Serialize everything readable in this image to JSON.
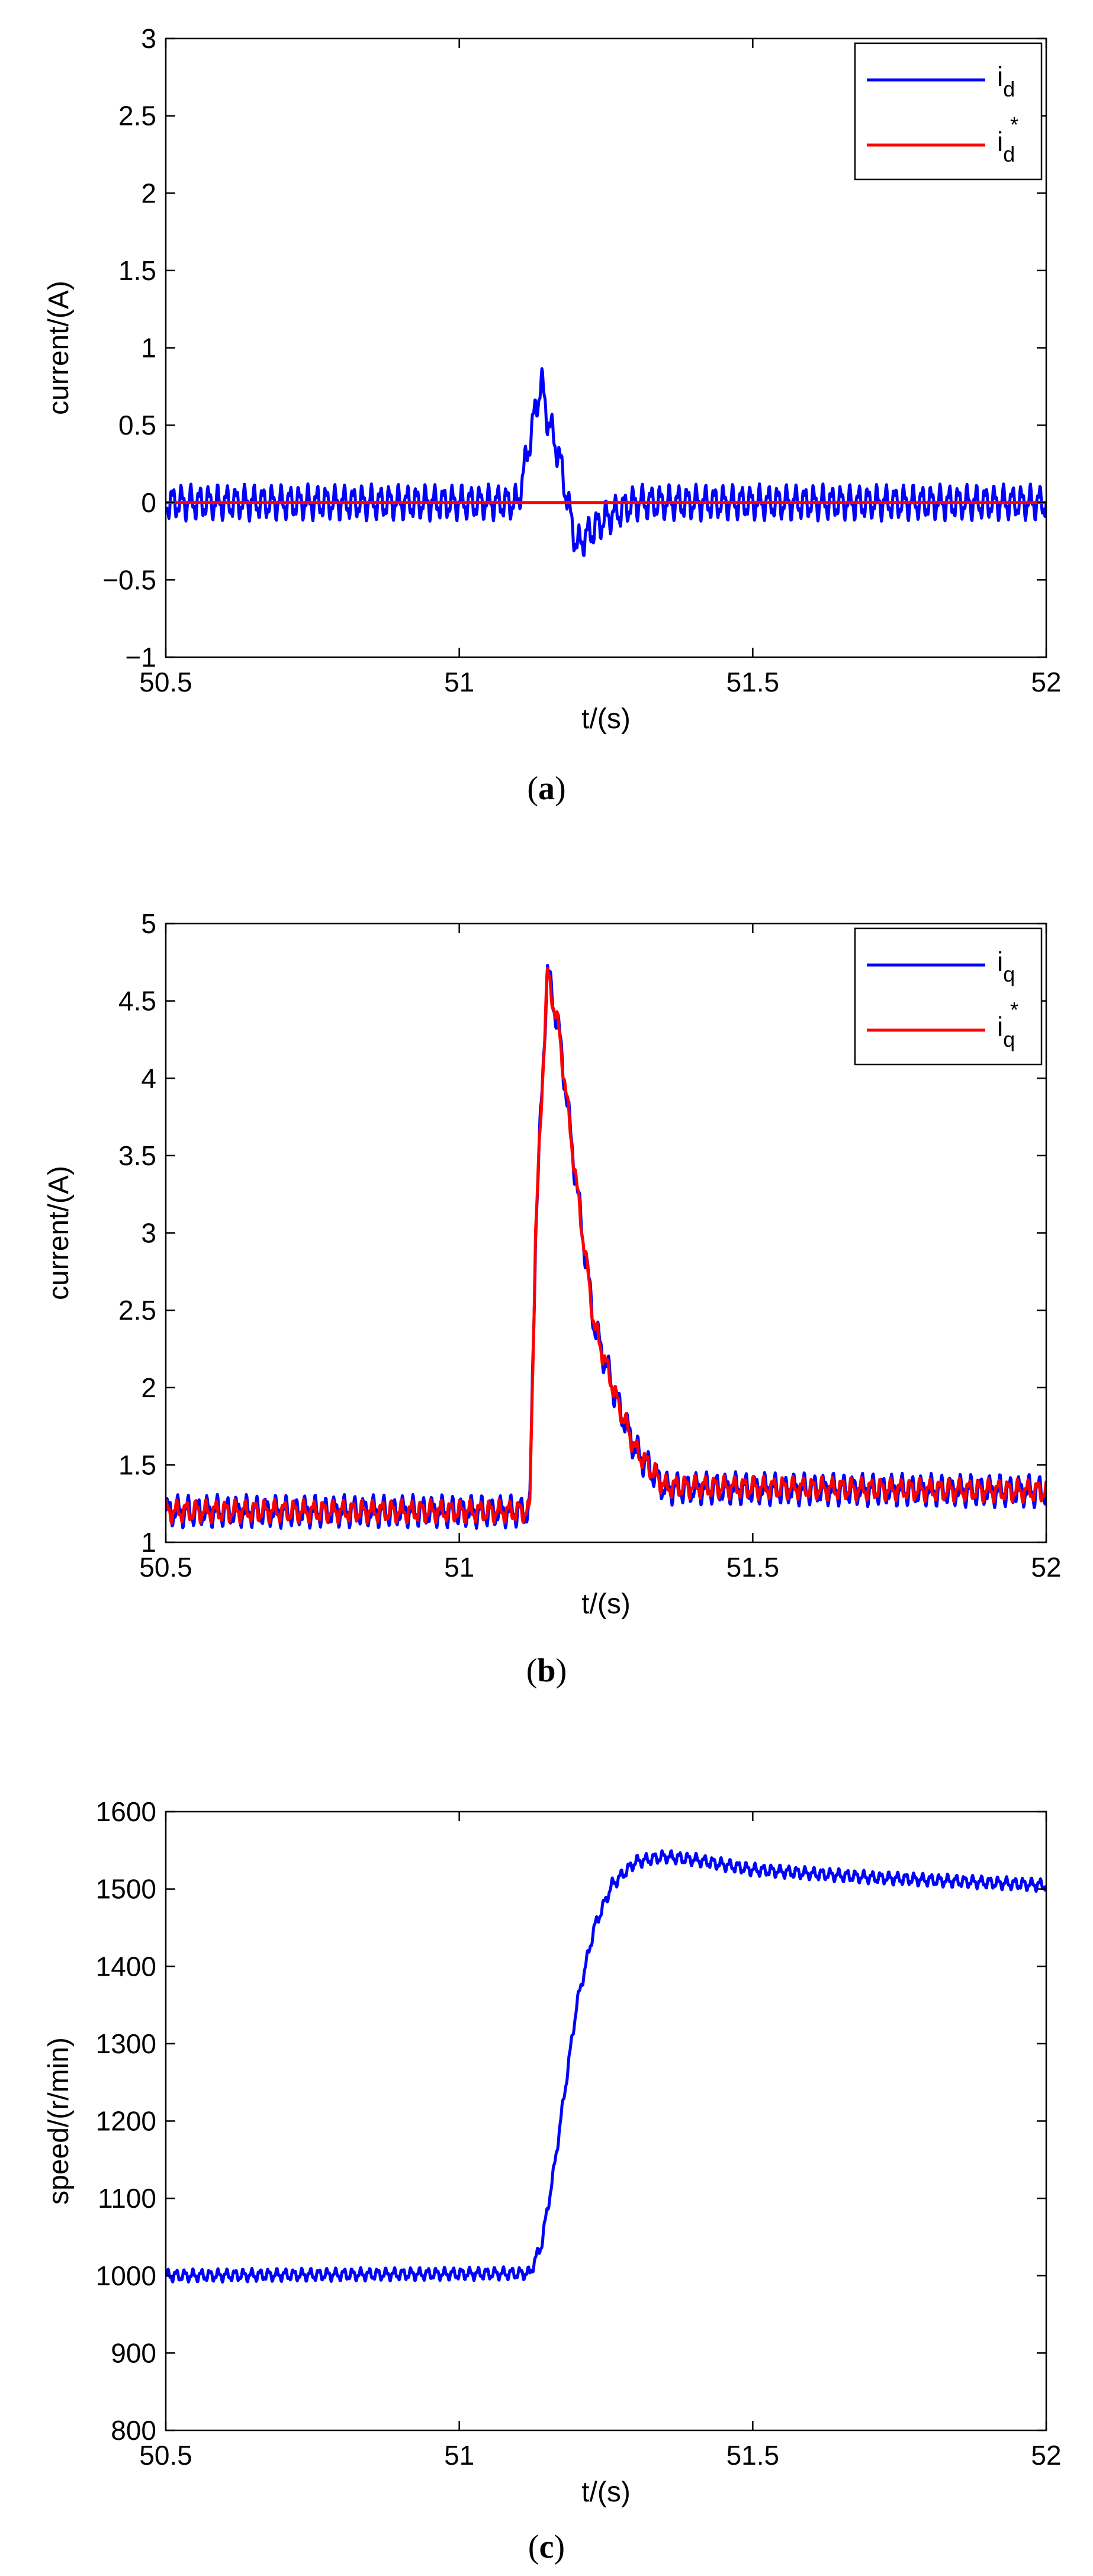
{
  "colors": {
    "blue": "#0000ff",
    "red": "#ff0000",
    "axis": "#000000"
  },
  "chart_data": [
    {
      "id": "a",
      "type": "line",
      "caption": "a",
      "xlabel": "t/(s)",
      "ylabel": "current/(A)",
      "xlim": [
        50.5,
        52
      ],
      "ylim": [
        -1,
        3
      ],
      "xticks": [
        50.5,
        51,
        51.5,
        52
      ],
      "xtick_labels": [
        "50.5",
        "51",
        "51.5",
        "52"
      ],
      "yticks": [
        -1,
        -0.5,
        0,
        0.5,
        1,
        1.5,
        2,
        2.5,
        3
      ],
      "ytick_labels": [
        "−1",
        "−0.5",
        "0",
        "0.5",
        "1",
        "1.5",
        "2",
        "2.5",
        "3"
      ],
      "legend": {
        "position": "top-right",
        "entries": [
          {
            "base": "i",
            "sub": "d",
            "sup": ""
          },
          {
            "base": "i",
            "sub": "d",
            "sup": "*"
          }
        ]
      },
      "series": [
        {
          "name": "i_d",
          "color": "#0000ff",
          "x": [
            50.5,
            51.1,
            51.13,
            51.14,
            51.15,
            51.17,
            51.19,
            51.2,
            51.22,
            51.25,
            51.3,
            52
          ],
          "y": [
            0,
            0,
            0.6,
            0.78,
            0.55,
            0.3,
            -0.1,
            -0.28,
            -0.2,
            -0.1,
            0,
            0
          ],
          "ripple": 0.11,
          "ripple_freq": 65
        },
        {
          "name": "i_d*",
          "color": "#ff0000",
          "x": [
            50.5,
            52
          ],
          "y": [
            0,
            0
          ],
          "ripple": 0,
          "ripple_freq": 0
        }
      ]
    },
    {
      "id": "b",
      "type": "line",
      "caption": "b",
      "xlabel": "t/(s)",
      "ylabel": "current/(A)",
      "xlim": [
        50.5,
        52
      ],
      "ylim": [
        1,
        5
      ],
      "xticks": [
        50.5,
        51,
        51.5,
        52
      ],
      "xtick_labels": [
        "50.5",
        "51",
        "51.5",
        "52"
      ],
      "yticks": [
        1,
        1.5,
        2,
        2.5,
        3,
        3.5,
        4,
        4.5,
        5
      ],
      "ytick_labels": [
        "1",
        "1.5",
        "2",
        "2.5",
        "3",
        "3.5",
        "4",
        "4.5",
        "5"
      ],
      "legend": {
        "position": "top-right",
        "entries": [
          {
            "base": "i",
            "sub": "q",
            "sup": ""
          },
          {
            "base": "i",
            "sub": "q",
            "sup": "*"
          }
        ]
      },
      "series": [
        {
          "name": "i_q",
          "color": "#0000ff",
          "x": [
            50.5,
            51.12,
            51.13,
            51.15,
            51.17,
            51.2,
            51.23,
            51.27,
            51.3,
            51.35,
            52
          ],
          "y": [
            1.2,
            1.2,
            3.0,
            4.7,
            4.3,
            3.3,
            2.4,
            1.9,
            1.6,
            1.35,
            1.33
          ],
          "ripple": 0.1,
          "ripple_freq": 60
        },
        {
          "name": "i_q*",
          "color": "#ff0000",
          "x": [
            50.5,
            51.12,
            51.13,
            51.15,
            51.17,
            51.2,
            51.23,
            51.27,
            51.3,
            51.35,
            52
          ],
          "y": [
            1.2,
            1.2,
            3.0,
            4.68,
            4.3,
            3.3,
            2.4,
            1.9,
            1.6,
            1.36,
            1.33
          ],
          "ripple": 0.07,
          "ripple_freq": 60
        }
      ]
    },
    {
      "id": "c",
      "type": "line",
      "caption": "c",
      "xlabel": "t/(s)",
      "ylabel": "speed/(r/min)",
      "xlim": [
        50.5,
        52
      ],
      "ylim": [
        800,
        1600
      ],
      "xticks": [
        50.5,
        51,
        51.5,
        52
      ],
      "xtick_labels": [
        "50.5",
        "51",
        "51.5",
        "52"
      ],
      "yticks": [
        800,
        900,
        1000,
        1100,
        1200,
        1300,
        1400,
        1500,
        1600
      ],
      "ytick_labels": [
        "800",
        "900",
        "1000",
        "1100",
        "1200",
        "1300",
        "1400",
        "1500",
        "1600"
      ],
      "legend": null,
      "series": [
        {
          "name": "speed",
          "color": "#0000ff",
          "x": [
            50.5,
            51.12,
            51.14,
            51.16,
            51.18,
            51.2,
            51.23,
            51.26,
            51.3,
            51.35,
            51.4,
            51.5,
            51.7,
            52
          ],
          "y": [
            1000,
            1003,
            1040,
            1130,
            1240,
            1350,
            1450,
            1505,
            1535,
            1542,
            1538,
            1525,
            1515,
            1505
          ],
          "ripple": 8,
          "ripple_freq": 70
        }
      ]
    }
  ]
}
